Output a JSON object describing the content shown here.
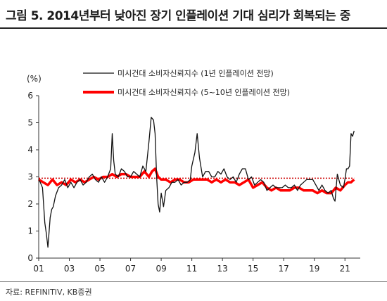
{
  "title": "그림 5. 2014년부터 낮아진 장기 인플레이션 기대 심리가 회복되는 중",
  "source": "자료: REFINITIV, KB증권",
  "chart_data": {
    "type": "line",
    "ylabel": "(%)",
    "ylim": [
      0,
      6
    ],
    "yticks": [
      "0",
      "1",
      "2",
      "3",
      "4",
      "5",
      "6"
    ],
    "xlim": [
      2001.0,
      2022.0
    ],
    "xticks": [
      "01",
      "03",
      "05",
      "07",
      "09",
      "11",
      "13",
      "15",
      "17",
      "19",
      "21"
    ],
    "grid": false,
    "legend": "top",
    "reference_line": {
      "y": 2.95,
      "color": "#cc0000",
      "style": "dotted"
    },
    "series": [
      {
        "name": "미시건대 소비자신뢰지수 (1년 인플레이션 전망)",
        "color": "#111111",
        "x": [
          2001.0,
          2001.1,
          2001.25,
          2001.4,
          2001.5,
          2001.6,
          2001.75,
          2001.85,
          2001.95,
          2002.1,
          2002.3,
          2002.5,
          2002.7,
          2002.9,
          2003.1,
          2003.3,
          2003.5,
          2003.7,
          2003.9,
          2004.1,
          2004.3,
          2004.5,
          2004.7,
          2004.9,
          2005.1,
          2005.3,
          2005.5,
          2005.7,
          2005.8,
          2005.9,
          2006.0,
          2006.2,
          2006.4,
          2006.6,
          2006.8,
          2007.0,
          2007.2,
          2007.4,
          2007.6,
          2007.8,
          2008.0,
          2008.2,
          2008.35,
          2008.5,
          2008.6,
          2008.7,
          2008.8,
          2008.9,
          2009.0,
          2009.15,
          2009.3,
          2009.5,
          2009.7,
          2009.9,
          2010.1,
          2010.3,
          2010.5,
          2010.7,
          2010.9,
          2011.0,
          2011.2,
          2011.35,
          2011.5,
          2011.7,
          2011.9,
          2012.1,
          2012.3,
          2012.5,
          2012.7,
          2012.9,
          2013.1,
          2013.3,
          2013.5,
          2013.7,
          2013.9,
          2014.1,
          2014.3,
          2014.5,
          2014.7,
          2014.9,
          2015.1,
          2015.3,
          2015.5,
          2015.7,
          2015.9,
          2016.1,
          2016.3,
          2016.5,
          2016.7,
          2016.9,
          2017.1,
          2017.3,
          2017.5,
          2017.7,
          2017.9,
          2018.1,
          2018.3,
          2018.5,
          2018.7,
          2018.9,
          2019.1,
          2019.3,
          2019.5,
          2019.7,
          2019.9,
          2020.1,
          2020.25,
          2020.35,
          2020.5,
          2020.7,
          2020.9,
          2021.0,
          2021.1,
          2021.2,
          2021.3,
          2021.4,
          2021.5,
          2021.6
        ],
        "y": [
          2.9,
          2.8,
          2.6,
          1.3,
          0.9,
          0.4,
          1.5,
          1.8,
          1.9,
          2.3,
          2.6,
          2.7,
          2.9,
          2.6,
          2.8,
          2.6,
          2.8,
          2.9,
          2.7,
          2.8,
          3.0,
          3.1,
          2.9,
          2.8,
          3.0,
          2.8,
          3.0,
          3.3,
          4.6,
          3.6,
          3.1,
          3.0,
          3.3,
          3.2,
          3.0,
          3.0,
          3.2,
          3.1,
          3.0,
          3.4,
          3.2,
          4.3,
          5.2,
          5.1,
          4.6,
          3.0,
          2.0,
          1.7,
          2.4,
          1.9,
          2.5,
          2.6,
          2.8,
          2.8,
          2.9,
          2.7,
          2.8,
          2.8,
          2.9,
          3.4,
          3.9,
          4.6,
          3.7,
          3.0,
          3.2,
          3.2,
          3.0,
          3.0,
          3.2,
          3.1,
          3.3,
          3.0,
          2.9,
          3.0,
          2.8,
          3.1,
          3.3,
          3.3,
          2.9,
          3.0,
          2.7,
          2.8,
          2.9,
          2.8,
          2.5,
          2.6,
          2.7,
          2.6,
          2.6,
          2.6,
          2.7,
          2.6,
          2.6,
          2.7,
          2.5,
          2.7,
          2.8,
          2.9,
          2.9,
          2.9,
          2.7,
          2.5,
          2.7,
          2.5,
          2.4,
          2.5,
          2.2,
          2.1,
          3.1,
          2.7,
          2.6,
          2.9,
          3.3,
          3.3,
          3.4,
          4.6,
          4.5,
          4.7
        ]
      },
      {
        "name": "미시건대 소비자신뢰지수 (5~10년 인플레이션 전망)",
        "color": "#ff0000",
        "x": [
          2001.0,
          2001.3,
          2001.6,
          2001.9,
          2002.2,
          2002.5,
          2002.8,
          2003.1,
          2003.4,
          2003.7,
          2004.0,
          2004.3,
          2004.6,
          2004.9,
          2005.2,
          2005.5,
          2005.8,
          2006.1,
          2006.4,
          2006.7,
          2007.0,
          2007.3,
          2007.6,
          2007.9,
          2008.2,
          2008.4,
          2008.6,
          2008.8,
          2009.0,
          2009.3,
          2009.6,
          2009.9,
          2010.2,
          2010.5,
          2010.8,
          2011.1,
          2011.4,
          2011.7,
          2012.0,
          2012.3,
          2012.6,
          2012.9,
          2013.2,
          2013.5,
          2013.8,
          2014.1,
          2014.4,
          2014.7,
          2015.0,
          2015.3,
          2015.6,
          2015.9,
          2016.2,
          2016.5,
          2016.8,
          2017.1,
          2017.4,
          2017.7,
          2018.0,
          2018.3,
          2018.6,
          2018.9,
          2019.2,
          2019.5,
          2019.8,
          2020.1,
          2020.4,
          2020.7,
          2021.0,
          2021.2,
          2021.4,
          2021.6
        ],
        "y": [
          2.9,
          2.8,
          2.7,
          2.9,
          2.7,
          2.8,
          2.7,
          2.9,
          2.8,
          2.9,
          2.8,
          2.9,
          3.0,
          2.9,
          3.0,
          3.0,
          3.1,
          3.0,
          3.1,
          3.1,
          3.0,
          3.0,
          3.0,
          3.2,
          3.0,
          3.2,
          3.3,
          3.0,
          2.9,
          2.9,
          2.8,
          2.9,
          2.9,
          2.8,
          2.8,
          2.9,
          2.9,
          2.9,
          2.9,
          2.8,
          2.9,
          2.8,
          2.9,
          2.8,
          2.8,
          2.7,
          2.8,
          2.9,
          2.6,
          2.7,
          2.8,
          2.6,
          2.5,
          2.6,
          2.5,
          2.5,
          2.5,
          2.6,
          2.6,
          2.5,
          2.5,
          2.5,
          2.4,
          2.5,
          2.4,
          2.4,
          2.6,
          2.5,
          2.7,
          2.8,
          2.8,
          2.9
        ]
      }
    ]
  }
}
